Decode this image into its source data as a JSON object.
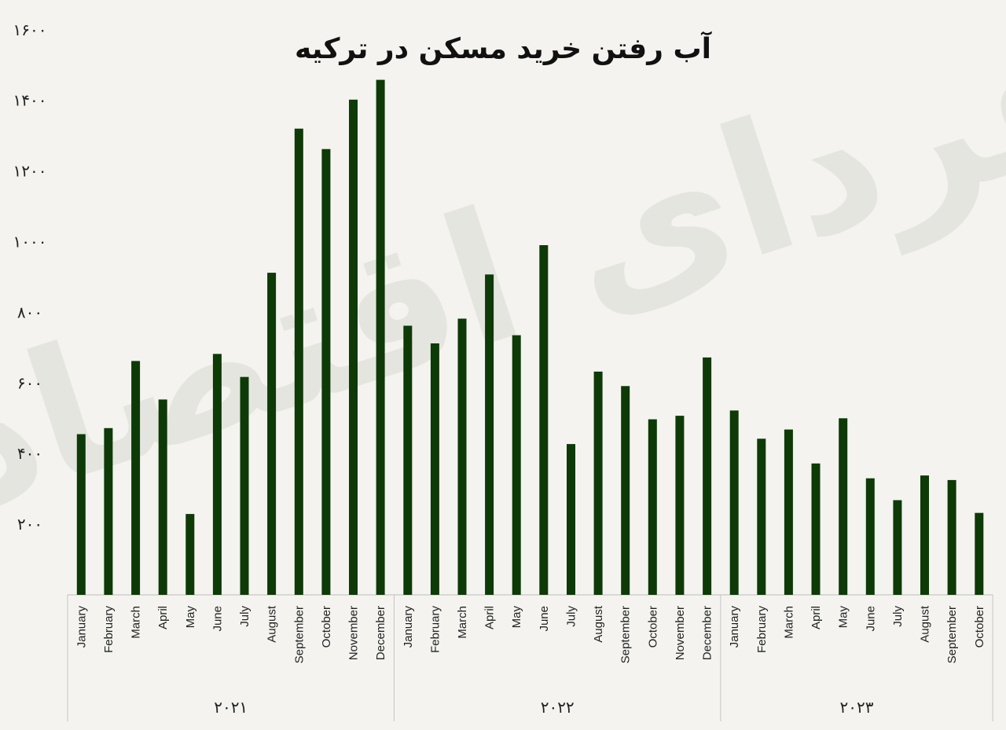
{
  "chart_data": {
    "type": "bar",
    "title": "آب رفتن خرید مسکن در ترکیه",
    "watermark": "فردای اقتصاد",
    "bar_color": "#0d3a06",
    "ylim": [
      0,
      1600
    ],
    "yticks": [
      200,
      400,
      600,
      800,
      1000,
      1200,
      1400,
      1600
    ],
    "ytick_labels": [
      "۲۰۰",
      "۴۰۰",
      "۶۰۰",
      "۸۰۰",
      "۱۰۰۰",
      "۱۲۰۰",
      "۱۴۰۰",
      "۱۶۰۰"
    ],
    "grid": false,
    "groups": [
      {
        "label": "۲۰۲۱",
        "categories": [
          "January",
          "February",
          "March",
          "April",
          "May",
          "June",
          "July",
          "August",
          "September",
          "October",
          "November",
          "December"
        ],
        "values": [
          455,
          472,
          662,
          553,
          229,
          682,
          617,
          912,
          1320,
          1262,
          1402,
          1458
        ]
      },
      {
        "label": "۲۰۲۲",
        "categories": [
          "January",
          "February",
          "March",
          "April",
          "May",
          "June",
          "July",
          "August",
          "September",
          "October",
          "November",
          "December"
        ],
        "values": [
          762,
          712,
          782,
          907,
          735,
          990,
          427,
          632,
          591,
          497,
          507,
          672
        ]
      },
      {
        "label": "۲۰۲۳",
        "categories": [
          "January",
          "February",
          "March",
          "April",
          "May",
          "June",
          "July",
          "August",
          "September",
          "October"
        ],
        "values": [
          522,
          442,
          468,
          372,
          500,
          330,
          268,
          338,
          325,
          232
        ]
      }
    ]
  }
}
